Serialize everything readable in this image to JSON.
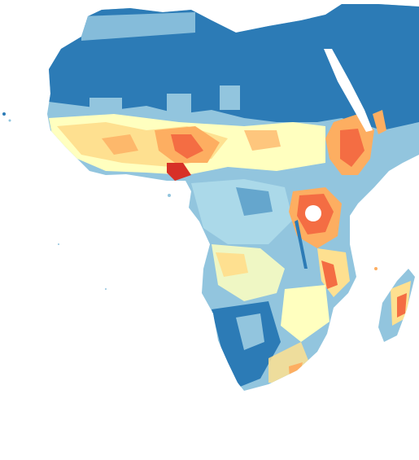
{
  "map": {
    "region": "Africa",
    "palette": {
      "very_low": "#2c7bb6",
      "low": "#92c5de",
      "mid_low": "#abd9e9",
      "mid": "#ffffbf",
      "mid_high": "#fee090",
      "high": "#fdae61",
      "very_high": "#f46d43",
      "extreme": "#d73027",
      "water": "#ffffff"
    }
  }
}
